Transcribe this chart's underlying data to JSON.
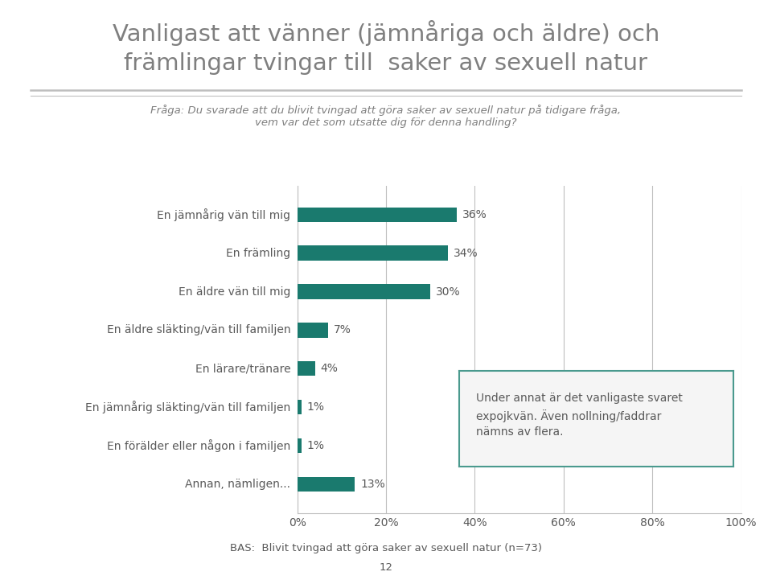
{
  "title_line1": "Vanligast att vänner (jämnåriga och äldre) och",
  "title_line2": "främlingar tvingar till  saker av sexuell natur",
  "subtitle": "Fråga: Du svarade att du blivit tvingad att göra saker av sexuell natur på tidigare fråga,\nvem var det som utsatte dig för denna handling?",
  "categories": [
    "En jämnårig vän till mig",
    "En främling",
    "En äldre vän till mig",
    "En äldre släkting/vän till familjen",
    "En lärare/tränare",
    "En jämnårig släkting/vän till familjen",
    "En förälder eller någon i familjen",
    "Annan, nämligen..."
  ],
  "values": [
    36,
    34,
    30,
    7,
    4,
    1,
    1,
    13
  ],
  "bar_color": "#1a7a6e",
  "background_color": "#ffffff",
  "xlabel_ticks": [
    0,
    20,
    40,
    60,
    80,
    100
  ],
  "xlabel_labels": [
    "0%",
    "20%",
    "40%",
    "60%",
    "80%",
    "100%"
  ],
  "annotation_box_text": "Under annat är det vanligaste svaret\nexpojkvän. Även nollning/faddrar\nnämns av flera.",
  "annotation_box_facecolor": "#f5f5f5",
  "annotation_box_edgecolor": "#4a9a8e",
  "bas_text": "BAS:  Blivit tvingad att göra saker av sexuell natur (n=73)",
  "page_number": "12",
  "title_color": "#7f7f7f",
  "subtitle_color": "#7f7f7f",
  "label_color": "#595959",
  "axis_color": "#bfbfbf",
  "value_label_color": "#595959"
}
